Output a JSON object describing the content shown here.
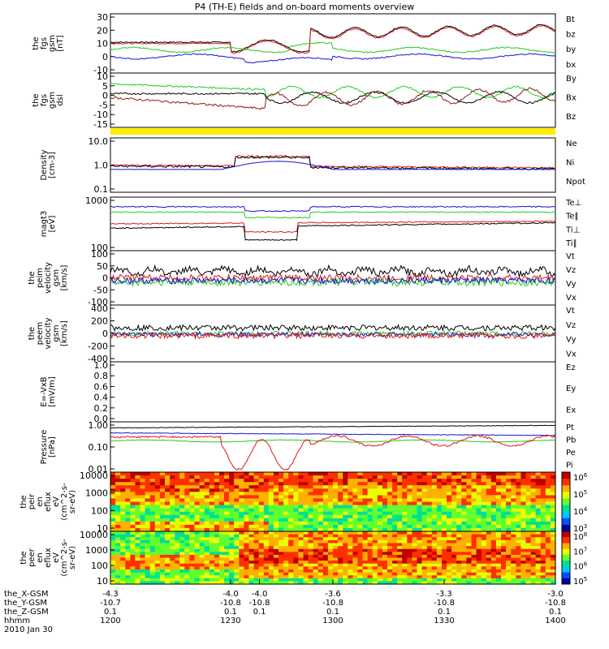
{
  "title": "P4 (TH-E) fields and on-board moments overview",
  "colors": {
    "black": "#000000",
    "red": "#e01818",
    "green": "#22cc22",
    "blue": "#1414d8",
    "darkred": "#8b1a1a",
    "yellow": "#ffee00"
  },
  "panels": [
    {
      "id": "fgs",
      "ylabel": [
        "the",
        "fgs",
        "gsm",
        "[nT]"
      ],
      "ticks": [
        "30",
        "20",
        "10",
        "0",
        "-10"
      ],
      "legend": [
        {
          "t": "Bt",
          "c": "black"
        },
        {
          "t": "bz",
          "c": "red"
        },
        {
          "t": "by",
          "c": "green"
        },
        {
          "t": "bx",
          "c": "blue"
        }
      ]
    },
    {
      "id": "fgs_dsl",
      "ylabel": [
        "the",
        "fgs",
        "gsm",
        "dsl"
      ],
      "ticks": [
        "10",
        "5",
        "0",
        "-5",
        "-10",
        "-15"
      ],
      "legend": [
        {
          "t": "By",
          "c": "green"
        },
        {
          "t": "Bx",
          "c": "black"
        },
        {
          "t": "Bz",
          "c": "darkred"
        }
      ]
    },
    {
      "id": "density",
      "ylabel": [
        "Density",
        "[cm-3]"
      ],
      "ticks": [
        "10.0",
        "1.0",
        "0.1"
      ],
      "legend": [
        {
          "t": "Ne",
          "c": "red"
        },
        {
          "t": "Ni",
          "c": "black"
        },
        {
          "t": "Npot",
          "c": "blue"
        }
      ]
    },
    {
      "id": "temp",
      "ylabel": [
        "magt3",
        "[eV]"
      ],
      "ticks": [
        "1000",
        "100"
      ],
      "legend": [
        {
          "t": "Te⊥",
          "c": "red"
        },
        {
          "t": "Te∥",
          "c": "black"
        },
        {
          "t": "Ti⊥",
          "c": "red"
        },
        {
          "t": "Ti∥",
          "c": "green"
        }
      ]
    },
    {
      "id": "vel_i",
      "ylabel": [
        "the",
        "peim",
        "velocity",
        "gsm",
        "[km/s]"
      ],
      "ticks": [
        "100",
        "50",
        "0",
        "-50",
        "-100"
      ],
      "legend": [
        {
          "t": "Vt",
          "c": "black"
        },
        {
          "t": "Vz",
          "c": "red"
        },
        {
          "t": "Vy",
          "c": "green"
        },
        {
          "t": "Vx",
          "c": "blue"
        }
      ]
    },
    {
      "id": "vel_e",
      "ylabel": [
        "the",
        "peem",
        "velocity",
        "gsm",
        "[km/s]"
      ],
      "ticks": [
        "400",
        "200",
        "0",
        "-200",
        "-400"
      ],
      "legend": [
        {
          "t": "Vt",
          "c": "black"
        },
        {
          "t": "Vz",
          "c": "red"
        },
        {
          "t": "Vy",
          "c": "green"
        },
        {
          "t": "Vx",
          "c": "blue"
        }
      ]
    },
    {
      "id": "efield",
      "ylabel": [
        "E=-VxB",
        "[mV/m]"
      ],
      "ticks": [
        "1.0",
        "0.8",
        "0.6",
        "0.4",
        "0.2",
        "0.0"
      ],
      "legend": [
        {
          "t": "Ez",
          "c": "red"
        },
        {
          "t": "Ey",
          "c": "green"
        },
        {
          "t": "Ex",
          "c": "blue"
        }
      ]
    },
    {
      "id": "pressure",
      "ylabel": [
        "Pressure",
        "[nPa]"
      ],
      "ticks": [
        "1.00",
        "0.10",
        "0.01"
      ],
      "legend": [
        {
          "t": "Pt",
          "c": "black"
        },
        {
          "t": "Pb",
          "c": "red"
        },
        {
          "t": "Pe",
          "c": "green"
        },
        {
          "t": "Pi",
          "c": "blue"
        }
      ]
    },
    {
      "id": "peir",
      "ylabel": [
        "the",
        "peir",
        "en",
        "eflux",
        "eV",
        "(cm^2-s-",
        "sr-eV)"
      ],
      "ticks": [
        "10000",
        "1000",
        "100",
        "10"
      ],
      "cbar": [
        "10^6",
        "10^5",
        "10^4",
        "10^3"
      ]
    },
    {
      "id": "peer",
      "ylabel": [
        "the",
        "peer",
        "en",
        "eflux",
        "eV",
        "(cm^2-s-",
        "sr-eV)"
      ],
      "ticks": [
        "10000",
        "1000",
        "100",
        "10"
      ],
      "cbar": [
        "10^8",
        "10^7",
        "10^6",
        "10^5"
      ]
    }
  ],
  "xaxis": {
    "rows": [
      {
        "label": "the_X-GSM",
        "values": [
          "-4.3",
          "-4.0",
          "-4.0",
          "-3.6",
          "-3.3",
          "-3.0"
        ]
      },
      {
        "label": "the_Y-GSM",
        "values": [
          "-10.7",
          "-10.8",
          "-10.8",
          "-10.8",
          "-10.8",
          "-10.8"
        ]
      },
      {
        "label": "the_Z-GSM",
        "values": [
          "0.1",
          "0.1",
          "0.1",
          "0.1",
          "0.1",
          "0.1"
        ]
      },
      {
        "label": "hhmm",
        "values": [
          "1200",
          "1230",
          "",
          "1300",
          "1330",
          "1400"
        ]
      }
    ],
    "date": "2010 Jan 30"
  },
  "chart_data": {
    "type": "line",
    "title": "P4 (TH-E) fields and on-board moments overview",
    "x": [
      "1200",
      "1230",
      "1300",
      "1330",
      "1400"
    ],
    "series": [
      {
        "name": "Bt",
        "values": [
          13,
          13,
          10,
          18,
          22
        ]
      },
      {
        "name": "bz",
        "values": [
          12,
          12,
          8,
          17,
          21
        ]
      },
      {
        "name": "by",
        "values": [
          4,
          4,
          4,
          4,
          3
        ]
      },
      {
        "name": "bx",
        "values": [
          0,
          -1,
          -3,
          -1,
          -2
        ]
      },
      {
        "name": "Ni",
        "values": [
          0.5,
          0.6,
          2.0,
          0.5,
          0.45
        ]
      },
      {
        "name": "Ne",
        "values": [
          0.6,
          0.7,
          2.3,
          0.6,
          0.55
        ]
      },
      {
        "name": "Pt",
        "values": [
          0.5,
          0.6,
          0.8,
          0.75,
          0.75
        ]
      }
    ]
  }
}
